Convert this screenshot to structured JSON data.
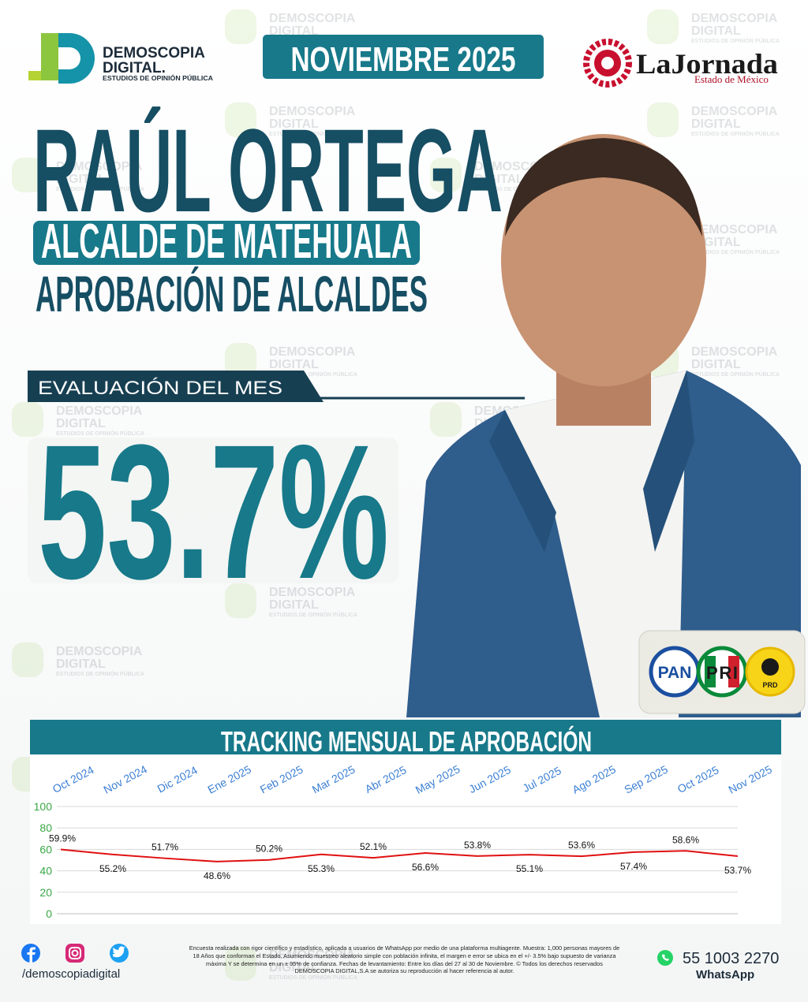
{
  "header": {
    "logo": {
      "name1": "DEMOSCOPIA",
      "name2": "DIGITAL.",
      "tagline": "ESTUDIOS DE OPINIÓN PÚBLICA"
    },
    "date": "NOVIEMBRE 2025",
    "partner": {
      "name": "LaJornada",
      "region": "Estado de México"
    }
  },
  "watermark": {
    "line1": "DEMOSCOPIA",
    "line2": "DIGITAL",
    "line3": "ESTUDIOS DE OPINIÓN PÚBLICA"
  },
  "profile": {
    "name": "RAÚL ORTEGA",
    "position": "ALCALDE DE MATEHUALA",
    "survey": "APROBACIÓN DE ALCALDES"
  },
  "evaluation": {
    "label": "EVALUACIÓN DEL MES",
    "score": "53.7%"
  },
  "parties": [
    "PAN",
    "PRI",
    "PRD"
  ],
  "chart_data": {
    "type": "line",
    "title": "TRACKING MENSUAL DE APROBACIÓN",
    "categories": [
      "Oct 2024",
      "Nov 2024",
      "Dic 2024",
      "Ene 2025",
      "Feb 2025",
      "Mar 2025",
      "Abr 2025",
      "May 2025",
      "Jun 2025",
      "Jul 2025",
      "Ago 2025",
      "Sep 2025",
      "Oct 2025",
      "Nov 2025"
    ],
    "values": [
      59.9,
      55.2,
      51.7,
      48.6,
      50.2,
      55.3,
      52.1,
      56.6,
      53.8,
      55.1,
      53.6,
      57.4,
      58.6,
      53.7
    ],
    "value_labels": [
      "59.9%",
      "55.2%",
      "51.7%",
      "48.6%",
      "50.2%",
      "55.3%",
      "52.1%",
      "56.6%",
      "53.8%",
      "55.1%",
      "53.6%",
      "57.4%",
      "58.6%",
      "53.7%"
    ],
    "color": "#e01010",
    "ylim": [
      0,
      100
    ],
    "yticks": [
      0,
      20,
      40,
      60,
      80,
      100
    ],
    "grid": true
  },
  "footer": {
    "handle": "/demoscopiadigital",
    "disclaimer": "Encuesta realizada con rigor científico y estadístico, aplicada a usuarios de WhatsApp por medio de una plataforma multiagente. Muestra: 1,000 personas mayores de 18 Años que conforman el Estado. Asumiendo muestreo aleatorio simple con población infinita, el margen e error se ubica en el +/- 3.5% bajo supuesto de varianza máxima Y se determina en un ± 95% de confianza. Fechas de levantamiento: Entre los días del 27 al 30 de Noviembre. © Todos los derechos reservados DEMOSCOPIA DIGITAL,S.A se autoriza su reproducción al hacer referencia al autor.",
    "phone": "55 1003 2270",
    "app": "WhatsApp"
  }
}
